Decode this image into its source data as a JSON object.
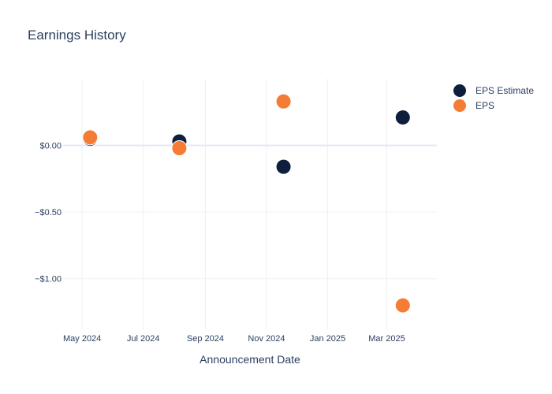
{
  "chart_data": {
    "type": "scatter",
    "title": "Earnings History",
    "xlabel": "Announcement Date",
    "ylabel": "",
    "x_ticks": [
      {
        "label": "May 2024",
        "date": "2024-05-01"
      },
      {
        "label": "Jul 2024",
        "date": "2024-07-01"
      },
      {
        "label": "Sep 2024",
        "date": "2024-09-01"
      },
      {
        "label": "Nov 2024",
        "date": "2024-11-01"
      },
      {
        "label": "Jan 2025",
        "date": "2025-01-01"
      },
      {
        "label": "Mar 2025",
        "date": "2025-03-01"
      }
    ],
    "x_range": [
      "2024-04-12",
      "2025-04-20"
    ],
    "y_ticks": [
      {
        "label": "$0.00",
        "value": 0
      },
      {
        "label": "−$0.50",
        "value": -0.5
      },
      {
        "label": "−$1.00",
        "value": -1.0
      }
    ],
    "ylim": [
      -1.38,
      0.5
    ],
    "grid": true,
    "legend_position": "top-right",
    "series": [
      {
        "name": "EPS Estimate",
        "color": "#0d1f3c",
        "points": [
          {
            "date": "2024-05-09",
            "value": 0.05
          },
          {
            "date": "2024-08-06",
            "value": 0.03
          },
          {
            "date": "2024-11-18",
            "value": -0.16
          },
          {
            "date": "2025-03-17",
            "value": 0.21
          }
        ]
      },
      {
        "name": "EPS",
        "color": "#f47c35",
        "points": [
          {
            "date": "2024-05-09",
            "value": 0.06
          },
          {
            "date": "2024-08-06",
            "value": -0.02
          },
          {
            "date": "2024-11-18",
            "value": 0.33
          },
          {
            "date": "2025-03-17",
            "value": -1.2
          }
        ]
      }
    ]
  }
}
